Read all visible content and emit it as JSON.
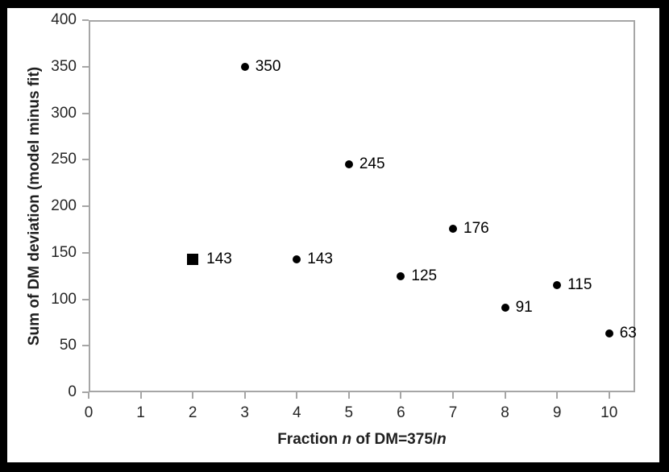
{
  "figure": {
    "background": "#ffffff",
    "border_color": "#000000",
    "axis_line_color": "#a6a6a6",
    "marker_color": "#000000",
    "text_color": "#262626"
  },
  "chart_data": {
    "type": "scatter",
    "title": "",
    "ylabel": "Sum of DM deviation (model minus fit)",
    "xlabel_plain": "Fraction n of DM=375/n",
    "xlabel_segments": [
      {
        "text": "Fraction ",
        "italic": false
      },
      {
        "text": "n",
        "italic": true
      },
      {
        "text": " of DM=375/",
        "italic": false
      },
      {
        "text": "n",
        "italic": true
      }
    ],
    "xlim": [
      0,
      10.5
    ],
    "ylim": [
      0,
      400
    ],
    "x_ticks": [
      0,
      1,
      2,
      3,
      4,
      5,
      6,
      7,
      8,
      9,
      10
    ],
    "y_ticks": [
      0,
      50,
      100,
      150,
      200,
      250,
      300,
      350,
      400
    ],
    "grid": false,
    "legend": "none",
    "points": [
      {
        "x": 2,
        "y": 143,
        "label": "143",
        "marker": "square"
      },
      {
        "x": 3,
        "y": 350,
        "label": "350",
        "marker": "circle"
      },
      {
        "x": 4,
        "y": 143,
        "label": "143",
        "marker": "circle"
      },
      {
        "x": 5,
        "y": 245,
        "label": "245",
        "marker": "circle"
      },
      {
        "x": 6,
        "y": 125,
        "label": "125",
        "marker": "circle"
      },
      {
        "x": 7,
        "y": 176,
        "label": "176",
        "marker": "circle"
      },
      {
        "x": 8,
        "y": 91,
        "label": "91",
        "marker": "circle"
      },
      {
        "x": 9,
        "y": 115,
        "label": "115",
        "marker": "circle"
      },
      {
        "x": 10,
        "y": 63,
        "label": "63",
        "marker": "circle"
      }
    ]
  }
}
